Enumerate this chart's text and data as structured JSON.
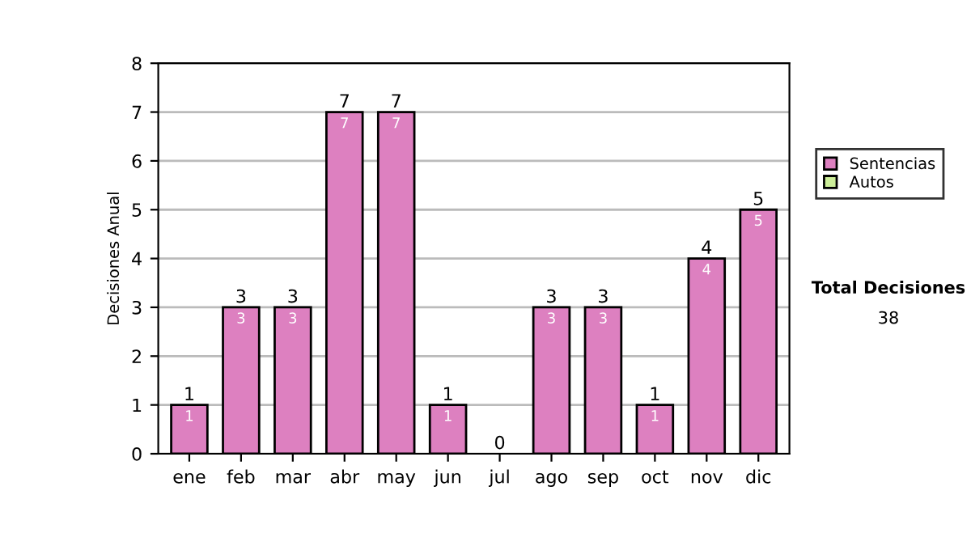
{
  "chart_data": {
    "type": "bar",
    "stacked": true,
    "ylabel": "Decisiones Anual",
    "categories": [
      "ene",
      "feb",
      "mar",
      "abr",
      "may",
      "jun",
      "jul",
      "ago",
      "sep",
      "oct",
      "nov",
      "dic"
    ],
    "series": [
      {
        "name": "Sentencias",
        "color": "#dd80c0",
        "values": [
          1,
          3,
          3,
          7,
          7,
          1,
          0,
          3,
          3,
          1,
          4,
          5
        ],
        "value_labels": [
          "1",
          "3",
          "3",
          "7",
          "7",
          "1",
          null,
          "3",
          "3",
          "1",
          "4",
          "5"
        ]
      },
      {
        "name": "Autos",
        "color": "#ccee99",
        "values": [
          0,
          0,
          0,
          0,
          0,
          0,
          0,
          0,
          0,
          0,
          0,
          0
        ]
      }
    ],
    "totals": [
      "1",
      "3",
      "3",
      "7",
      "7",
      "1",
      "0",
      "3",
      "3",
      "1",
      "4",
      "5"
    ],
    "ylim": [
      0,
      8
    ],
    "yticks": [
      0,
      1,
      2,
      3,
      4,
      5,
      6,
      7,
      8
    ],
    "grid": "y",
    "legend": "right",
    "annotations": [
      "Total Decisiones",
      "38"
    ]
  }
}
